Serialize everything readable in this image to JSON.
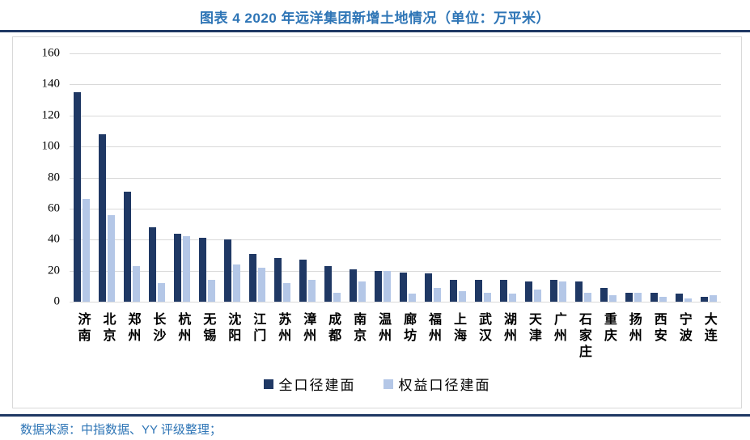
{
  "title": "图表 4 2020 年远洋集团新增土地情况（单位：万平米）",
  "source_note": "数据来源：中指数据、YY 评级整理；",
  "colors": {
    "title_blue": "#2e75b6",
    "rule_navy": "#1f3864",
    "bar_dark": "#1f3864",
    "bar_light": "#b4c7e7",
    "gridline": "#d9d9d9"
  },
  "chart_data": {
    "type": "bar",
    "title": "图表 4 2020 年远洋集团新增土地情况（单位：万平米）",
    "categories": [
      "济南",
      "北京",
      "郑州",
      "长沙",
      "杭州",
      "无锡",
      "沈阳",
      "江门",
      "苏州",
      "漳州",
      "成都",
      "南京",
      "温州",
      "廊坊",
      "福州",
      "上海",
      "武汉",
      "湖州",
      "天津",
      "广州",
      "石家庄",
      "重庆",
      "扬州",
      "西安",
      "宁波",
      "大连"
    ],
    "series": [
      {
        "name": "全口径建面",
        "color": "#1f3864",
        "values": [
          135,
          108,
          71,
          48,
          44,
          41,
          40,
          31,
          28,
          27,
          23,
          21,
          20,
          19,
          18,
          14,
          14,
          14,
          13,
          14,
          13,
          9,
          6,
          6,
          5,
          3
        ]
      },
      {
        "name": "权益口径建面",
        "color": "#b4c7e7",
        "values": [
          66,
          56,
          23,
          12,
          42,
          14,
          24,
          22,
          12,
          14,
          6,
          13,
          20,
          5,
          9,
          7,
          6,
          5,
          8,
          13,
          6,
          4,
          6,
          3,
          2,
          4
        ]
      }
    ],
    "xlabel": "",
    "ylabel": "",
    "ylim": [
      0,
      160
    ],
    "ytick_step": 20,
    "yticks": [
      0,
      20,
      40,
      60,
      80,
      100,
      120,
      140,
      160
    ],
    "grid": "horizontal",
    "legend_position": "bottom"
  }
}
